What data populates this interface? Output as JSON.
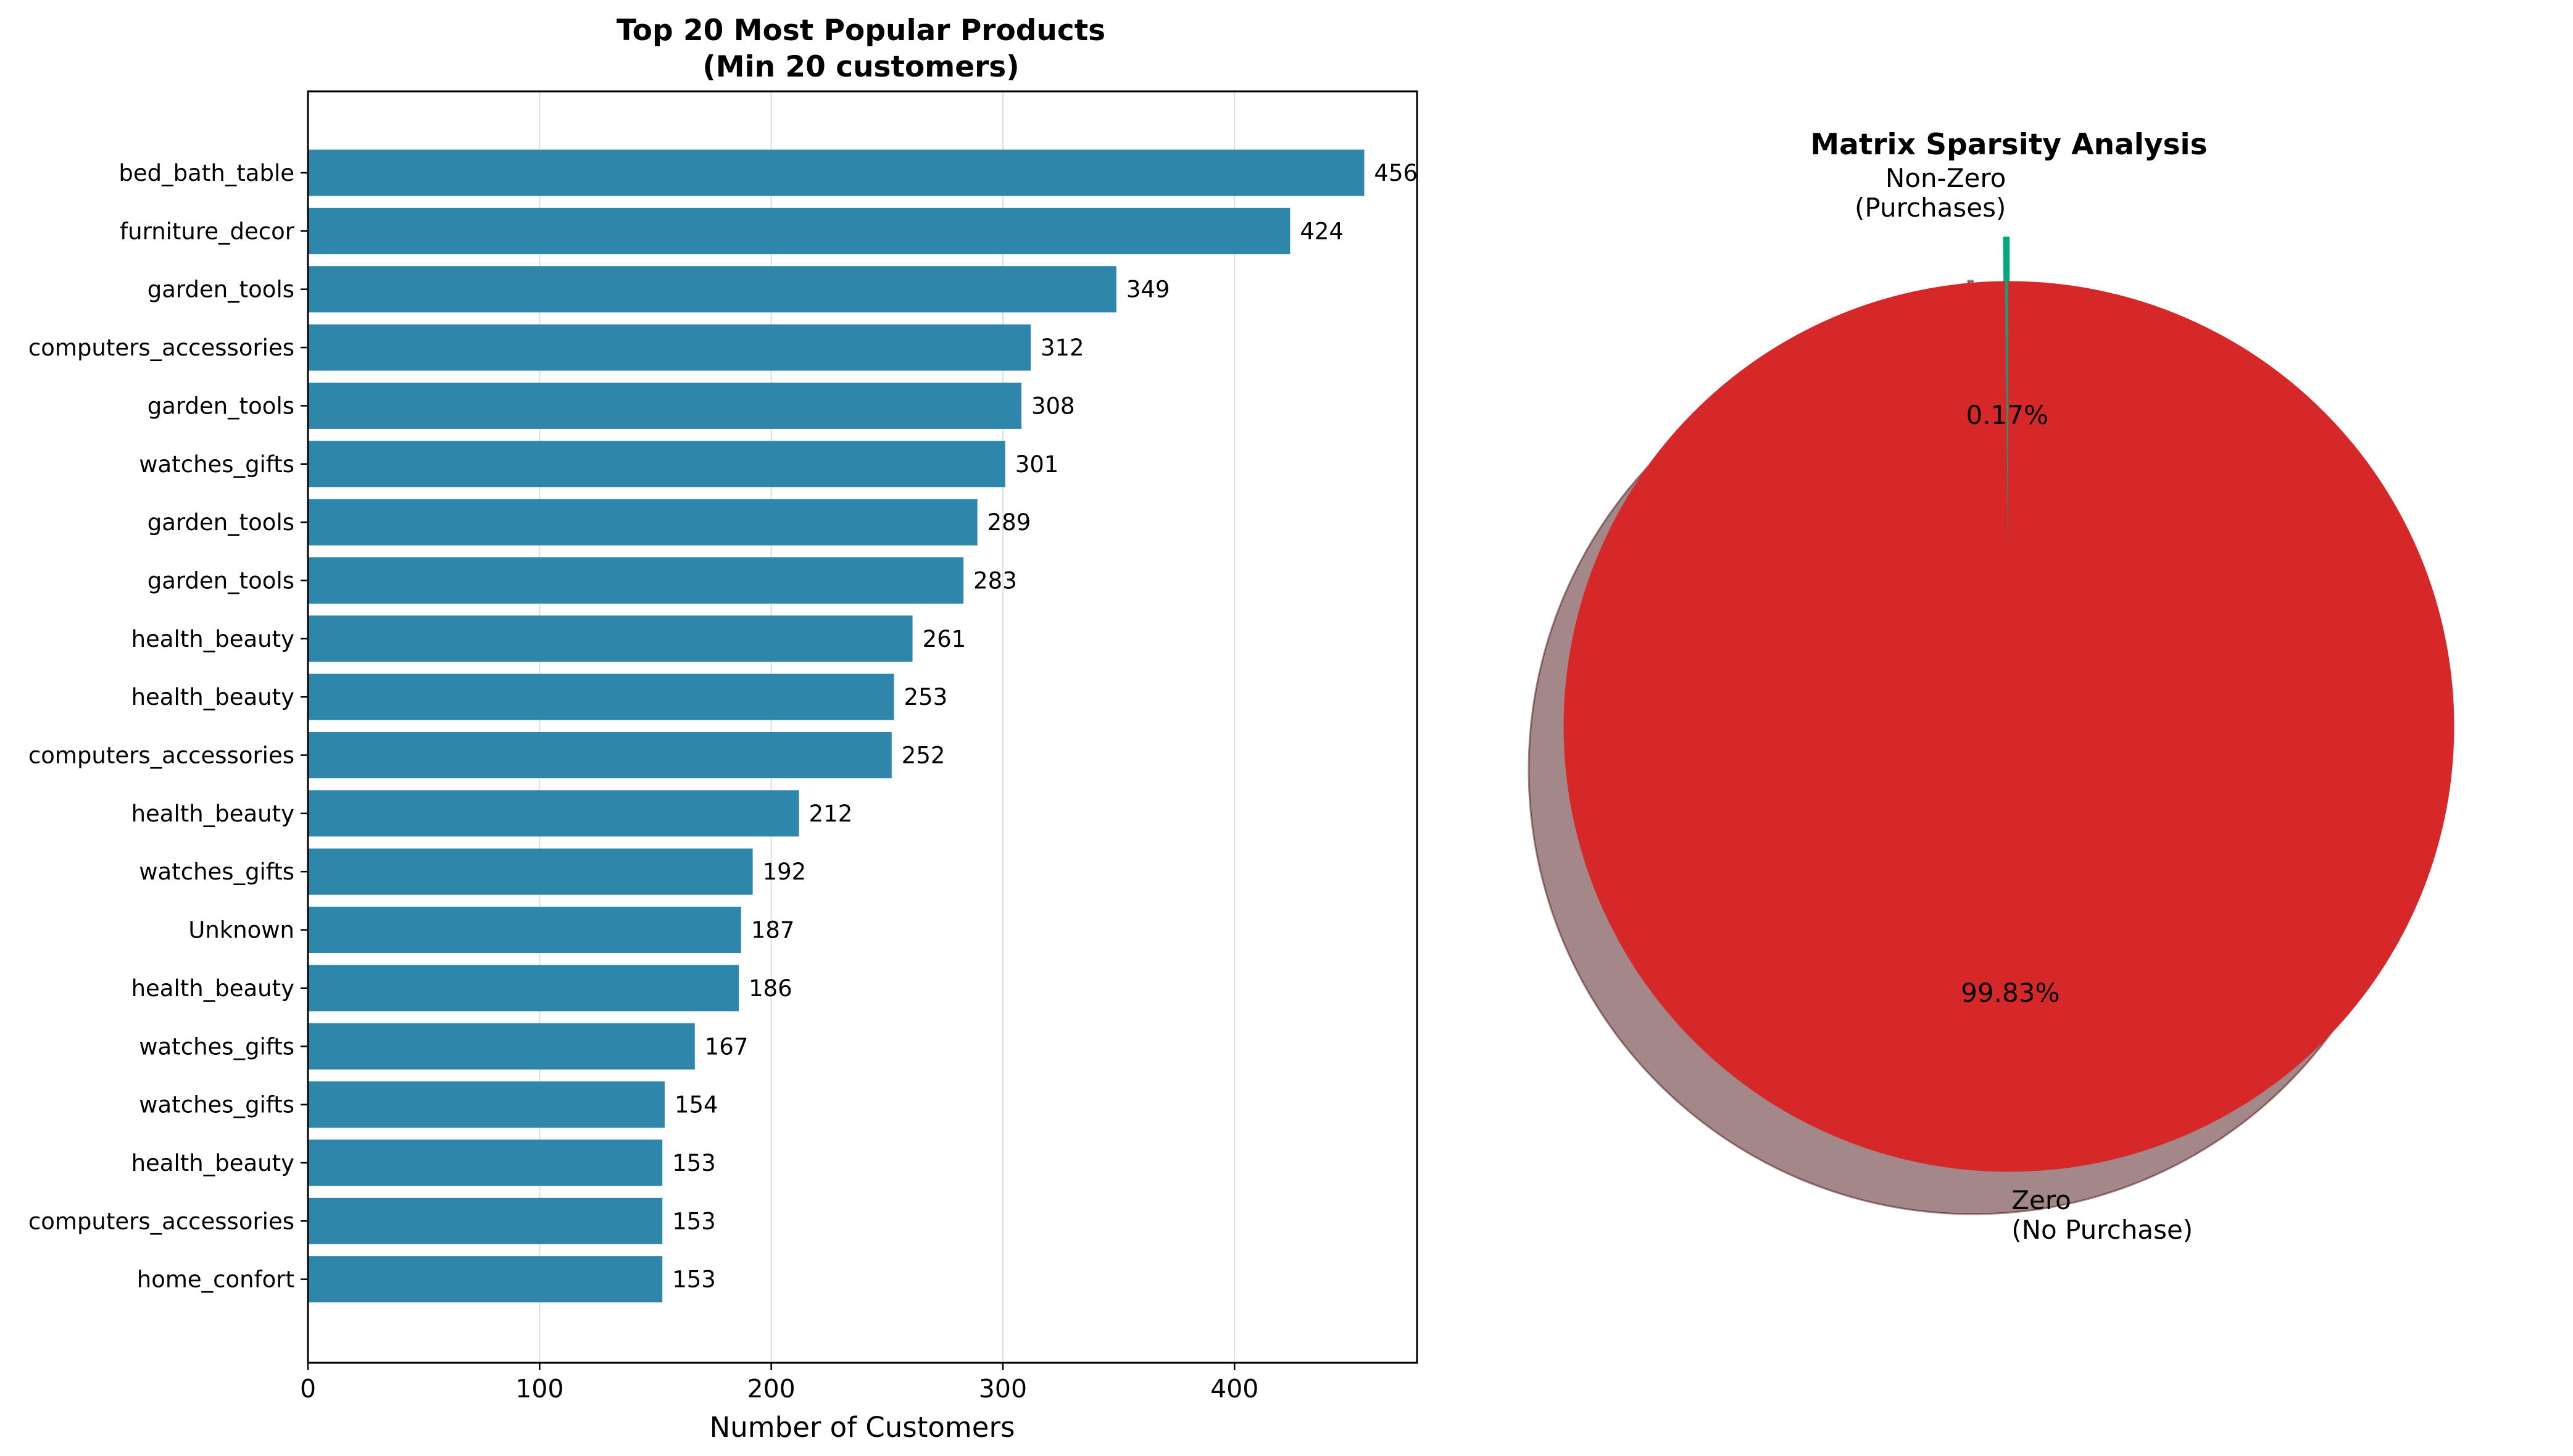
{
  "chart_data": [
    {
      "type": "bar",
      "orientation": "horizontal",
      "title": "Top 20 Most Popular Products\n(Min 20 customers)",
      "title_lines": [
        "Top 20 Most Popular Products",
        "(Min 20 customers)"
      ],
      "xlabel": "Number of Customers",
      "ylabel": "",
      "xlim": [
        0,
        478.8
      ],
      "xticks": [
        0,
        100,
        200,
        300,
        400
      ],
      "grid": "x",
      "color": "#2e86ab",
      "categories": [
        "bed_bath_table",
        "furniture_decor",
        "garden_tools",
        "computers_accessories",
        "garden_tools",
        "watches_gifts",
        "garden_tools",
        "garden_tools",
        "health_beauty",
        "health_beauty",
        "computers_accessories",
        "health_beauty",
        "watches_gifts",
        "Unknown",
        "health_beauty",
        "watches_gifts",
        "watches_gifts",
        "health_beauty",
        "computers_accessories",
        "home_confort"
      ],
      "values": [
        456,
        424,
        349,
        312,
        308,
        301,
        289,
        283,
        261,
        253,
        252,
        212,
        192,
        187,
        186,
        167,
        154,
        153,
        153,
        153
      ],
      "value_labels": [
        "456",
        "424",
        "349",
        "312",
        "308",
        "301",
        "289",
        "283",
        "261",
        "253",
        "252",
        "212",
        "192",
        "187",
        "186",
        "167",
        "154",
        "153",
        "153",
        "153"
      ]
    },
    {
      "type": "pie",
      "title": "Matrix Sparsity Analysis",
      "shadow": true,
      "slices": [
        {
          "label": "Non-Zero\n(Purchases)",
          "label_lines": [
            "Non-Zero",
            "(Purchases)"
          ],
          "value": 0.17,
          "pct_label": "0.17%",
          "color": "#06a77d",
          "exploded": true
        },
        {
          "label": "Zero\n(No Purchase)",
          "label_lines": [
            "Zero",
            "(No Purchase)"
          ],
          "value": 99.83,
          "pct_label": "99.83%",
          "color": "#d62828",
          "exploded": false
        }
      ]
    }
  ]
}
